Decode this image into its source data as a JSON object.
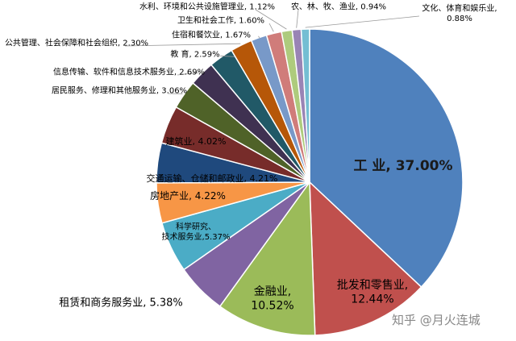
{
  "chart_data": {
    "type": "pie",
    "slices": [
      {
        "label": "工  业",
        "value": 37.0,
        "value_text": "37.00%",
        "color": "#4F81BD"
      },
      {
        "label": "批发和零售业",
        "value": 12.44,
        "value_text": "12.44%",
        "color": "#C0504D"
      },
      {
        "label": "金融业",
        "value": 10.52,
        "value_text": "10.52%",
        "color": "#9BBB59"
      },
      {
        "label": "租赁和商务服务业",
        "value": 5.38,
        "value_text": "5.38%",
        "color": "#8064A2"
      },
      {
        "label": "科学研究、技术服务业",
        "value": 5.37,
        "value_text": "5.37%",
        "color": "#4BACC6"
      },
      {
        "label": "房地产业",
        "value": 4.22,
        "value_text": "4.22%",
        "color": "#F79646"
      },
      {
        "label": "交通运输、仓储和邮政业",
        "value": 4.21,
        "value_text": "4.21%",
        "color": "#1F497D"
      },
      {
        "label": "建筑业",
        "value": 4.02,
        "value_text": "4.02%",
        "color": "#772C2A"
      },
      {
        "label": "居民服务、修理和其他服务业",
        "value": 3.06,
        "value_text": "3.06%",
        "color": "#4F6228"
      },
      {
        "label": "信息传输、软件和信息技术服务业",
        "value": 2.69,
        "value_text": "2.69%",
        "color": "#3F3151"
      },
      {
        "label": "教  育",
        "value": 2.59,
        "value_text": "2.59%",
        "color": "#215967"
      },
      {
        "label": "公共管理、社会保障和社会组织",
        "value": 2.3,
        "value_text": "2.30%",
        "color": "#B65708"
      },
      {
        "label": "住宿和餐饮业",
        "value": 1.67,
        "value_text": "1.67%",
        "color": "#7899C8"
      },
      {
        "label": "卫生和社会工作",
        "value": 1.6,
        "value_text": "1.60%",
        "color": "#D07C7A"
      },
      {
        "label": "水利、环境和公共设施管理业",
        "value": 1.12,
        "value_text": "1.12%",
        "color": "#AECB7D"
      },
      {
        "label": "农、林、牧、渔业",
        "value": 0.94,
        "value_text": "0.94%",
        "color": "#9984B5"
      },
      {
        "label": "文化、体育和娱乐业",
        "value": 0.88,
        "value_text": "0.88%",
        "color": "#74BED3"
      }
    ]
  },
  "watermark": "知乎 @月火连城"
}
